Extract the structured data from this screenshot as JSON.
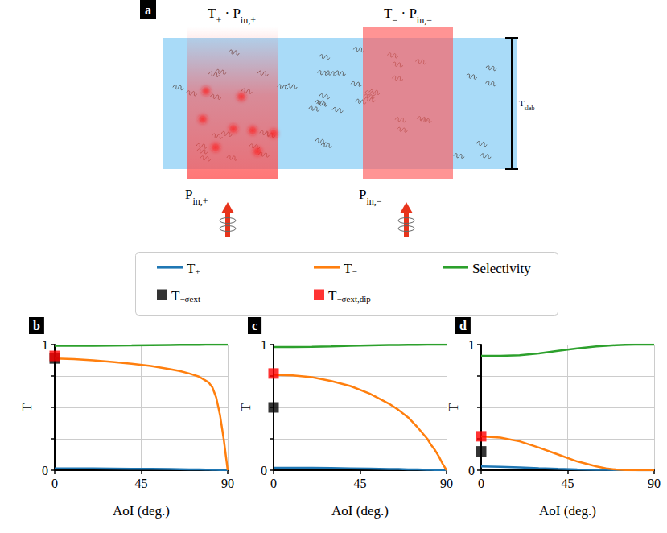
{
  "diagram": {
    "panel": "a",
    "transmitted_plus": [
      [
        "T",
        "+"
      ],
      [
        " · P",
        "in,+"
      ]
    ],
    "transmitted_minus": [
      [
        "T",
        "−"
      ],
      [
        " · P",
        "in,−"
      ]
    ],
    "input_plus": [
      [
        "P",
        "in,+"
      ]
    ],
    "input_minus": [
      [
        "P",
        "in,−"
      ]
    ],
    "thickness": [
      [
        "T",
        "slab"
      ]
    ]
  },
  "chart_data": [
    {
      "type": "line",
      "title": "b",
      "x_label": "AoI (deg.)",
      "y_label": "T",
      "x": [
        0,
        10,
        20,
        30,
        40,
        50,
        60,
        65,
        70,
        75,
        80,
        82,
        84,
        86,
        88,
        90
      ],
      "xlim": [
        0,
        90
      ],
      "xticks": [
        0,
        45,
        90
      ],
      "ylim": [
        0,
        1
      ],
      "yticks": [
        0,
        {
          "value": 0.25,
          "label": null
        },
        {
          "value": 0.5,
          "label": null
        },
        {
          "value": 0.75,
          "label": null
        },
        1
      ],
      "grid": true,
      "legend": "top",
      "series": [
        {
          "name": "T+",
          "type": "line",
          "line_style": "solid",
          "color": "#1f77b4",
          "values": [
            0.015,
            0.015,
            0.014,
            0.013,
            0.012,
            0.011,
            0.009,
            0.008,
            0.007,
            0.006,
            0.005,
            0.004,
            0.003,
            0.002,
            0.001,
            0
          ]
        },
        {
          "name": "T−",
          "type": "line",
          "line_style": "solid",
          "color": "#ff7f0e",
          "values": [
            0.89,
            0.885,
            0.875,
            0.862,
            0.848,
            0.83,
            0.805,
            0.79,
            0.77,
            0.745,
            0.7,
            0.66,
            0.58,
            0.44,
            0.24,
            0
          ]
        },
        {
          "name": "Selectivity",
          "type": "line",
          "line_style": "solid",
          "color": "#2ca02c",
          "values": [
            0.99,
            0.99,
            0.991,
            0.992,
            0.993,
            0.995,
            0.997,
            0.998,
            0.998,
            0.999,
            1,
            1,
            1,
            1,
            1,
            1
          ]
        },
        {
          "name": "T−σext",
          "type": "scatter",
          "marker": "square",
          "color": "#000000",
          "values": [
            0.89,
            null,
            null,
            null,
            null,
            null,
            null,
            null,
            null,
            null,
            null,
            null,
            null,
            null,
            null,
            null
          ]
        },
        {
          "name": "T−σext,dip",
          "type": "scatter",
          "marker": "square",
          "color": "#ff0000",
          "values": [
            0.91,
            null,
            null,
            null,
            null,
            null,
            null,
            null,
            null,
            null,
            null,
            null,
            null,
            null,
            null,
            null
          ]
        }
      ]
    },
    {
      "type": "line",
      "title": "c",
      "x_label": "AoI (deg.)",
      "y_label": "T",
      "x": [
        0,
        10,
        20,
        30,
        40,
        50,
        60,
        65,
        70,
        75,
        80,
        82,
        84,
        86,
        88,
        90
      ],
      "xlim": [
        0,
        90
      ],
      "xticks": [
        0,
        45,
        90
      ],
      "ylim": [
        0,
        1
      ],
      "yticks": [
        0,
        {
          "value": 0.25,
          "label": null
        },
        {
          "value": 0.5,
          "label": null
        },
        {
          "value": 0.75,
          "label": null
        },
        1
      ],
      "grid": true,
      "legend": "top",
      "series": [
        {
          "name": "T+",
          "type": "line",
          "line_style": "solid",
          "color": "#1f77b4",
          "values": [
            0.02,
            0.02,
            0.019,
            0.017,
            0.015,
            0.013,
            0.01,
            0.009,
            0.007,
            0.006,
            0.004,
            0.003,
            0.002,
            0.002,
            0.001,
            0
          ]
        },
        {
          "name": "T−",
          "type": "line",
          "line_style": "solid",
          "color": "#ff7f0e",
          "values": [
            0.76,
            0.755,
            0.74,
            0.71,
            0.67,
            0.61,
            0.53,
            0.48,
            0.42,
            0.34,
            0.25,
            0.2,
            0.16,
            0.11,
            0.05,
            0
          ]
        },
        {
          "name": "Selectivity",
          "type": "line",
          "line_style": "solid",
          "color": "#2ca02c",
          "values": [
            0.98,
            0.98,
            0.982,
            0.985,
            0.99,
            0.993,
            0.996,
            0.997,
            0.998,
            0.999,
            1,
            1,
            1,
            1,
            1,
            1
          ]
        },
        {
          "name": "T−σext",
          "type": "scatter",
          "marker": "square",
          "color": "#000000",
          "values": [
            0.5,
            null,
            null,
            null,
            null,
            null,
            null,
            null,
            null,
            null,
            null,
            null,
            null,
            null,
            null,
            null
          ]
        },
        {
          "name": "T−σext,dip",
          "type": "scatter",
          "marker": "square",
          "color": "#ff0000",
          "values": [
            0.77,
            null,
            null,
            null,
            null,
            null,
            null,
            null,
            null,
            null,
            null,
            null,
            null,
            null,
            null,
            null
          ]
        }
      ]
    },
    {
      "type": "line",
      "title": "d",
      "x_label": "AoI (deg.)",
      "y_label": "T",
      "x": [
        0,
        10,
        20,
        30,
        40,
        50,
        60,
        65,
        70,
        75,
        80,
        82,
        84,
        86,
        88,
        90
      ],
      "xlim": [
        0,
        90
      ],
      "xticks": [
        0,
        45,
        90
      ],
      "ylim": [
        0,
        1
      ],
      "yticks": [
        0,
        {
          "value": 0.25,
          "label": null
        },
        {
          "value": 0.5,
          "label": null
        },
        {
          "value": 0.75,
          "label": null
        },
        1
      ],
      "grid": true,
      "legend": "top",
      "series": [
        {
          "name": "T+",
          "type": "line",
          "line_style": "solid",
          "color": "#1f77b4",
          "values": [
            0.03,
            0.028,
            0.022,
            0.016,
            0.011,
            0.007,
            0.004,
            0.003,
            0.002,
            0.001,
            0.001,
            0,
            0,
            0,
            0,
            0
          ]
        },
        {
          "name": "T−",
          "type": "line",
          "line_style": "solid",
          "color": "#ff7f0e",
          "values": [
            0.27,
            0.26,
            0.23,
            0.18,
            0.125,
            0.07,
            0.03,
            0.015,
            0.006,
            0.002,
            0,
            0,
            0,
            0,
            0,
            0
          ]
        },
        {
          "name": "Selectivity",
          "type": "line",
          "line_style": "solid",
          "color": "#2ca02c",
          "values": [
            0.91,
            0.91,
            0.915,
            0.93,
            0.95,
            0.97,
            0.985,
            0.99,
            0.995,
            0.998,
            1,
            1,
            1,
            1,
            1,
            1
          ]
        },
        {
          "name": "T−σext",
          "type": "scatter",
          "marker": "square",
          "color": "#000000",
          "values": [
            0.15,
            null,
            null,
            null,
            null,
            null,
            null,
            null,
            null,
            null,
            null,
            null,
            null,
            null,
            null,
            null
          ]
        },
        {
          "name": "T−σext,dip",
          "type": "scatter",
          "marker": "square",
          "color": "#ff0000",
          "values": [
            0.27,
            null,
            null,
            null,
            null,
            null,
            null,
            null,
            null,
            null,
            null,
            null,
            null,
            null,
            null,
            null
          ]
        }
      ]
    }
  ]
}
